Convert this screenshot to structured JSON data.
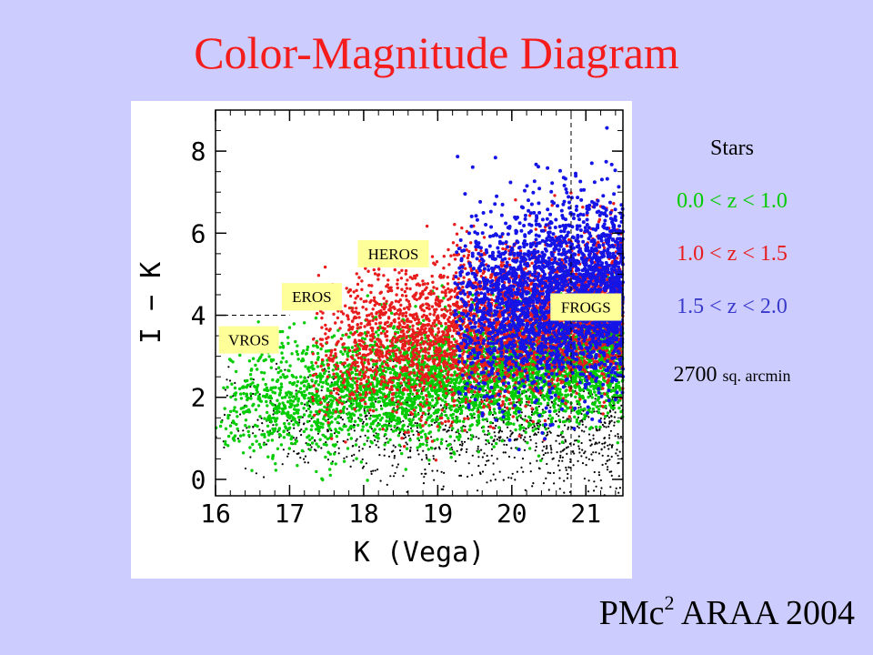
{
  "slide": {
    "title": "Color-Magnitude Diagram",
    "citation_prefix": "PMc",
    "citation_superscript": "2",
    "citation_suffix": "ARAA 2004"
  },
  "legend": {
    "title": "Stars",
    "entries": [
      {
        "label": "0.0 < z < 1.0",
        "color": "#00cc00"
      },
      {
        "label": "1.0 < z < 1.5",
        "color": "#e81c1c"
      },
      {
        "label": "1.5 < z < 2.0",
        "color": "#3a3acc"
      }
    ],
    "area_value": "2700",
    "area_unit": "sq. arcmin"
  },
  "chart_data": {
    "type": "scatter",
    "xlabel": "K (Vega)",
    "ylabel": "I − K",
    "xlim": [
      16,
      21.5
    ],
    "ylim": [
      -0.4,
      9
    ],
    "x_ticks": [
      16,
      17,
      18,
      19,
      20,
      21
    ],
    "y_ticks": [
      0,
      2,
      4,
      6,
      8
    ],
    "grid": false,
    "series": [
      {
        "color": "#000000",
        "n": 1100,
        "k_range": [
          16,
          21.5
        ],
        "ik_center": 1.3,
        "ik_spread": 0.75
      },
      {
        "color": "#00cc00",
        "n": 4200,
        "k_range": [
          16,
          21.5
        ],
        "ik_center": 2.3,
        "ik_spread": 0.7
      },
      {
        "color": "#e81c1c",
        "n": 3600,
        "k_range": [
          17.3,
          21.5
        ],
        "ik_center": 3.4,
        "ik_spread": 0.9
      },
      {
        "color": "#1414e6",
        "n": 2600,
        "k_range": [
          19.2,
          21.5
        ],
        "ik_center": 3.9,
        "ik_spread": 1.1
      }
    ],
    "regions": [
      {
        "label": "VROS",
        "k": 16.45,
        "ik": 3.4
      },
      {
        "label": "EROS",
        "k": 17.3,
        "ik": 4.45
      },
      {
        "label": "HEROS",
        "k": 18.4,
        "ik": 5.5
      },
      {
        "label": "FROGS",
        "k": 21.0,
        "ik": 4.2
      }
    ],
    "reference_lines": [
      {
        "orientation": "horizontal",
        "ik": 4,
        "k_range": [
          16,
          17.0
        ]
      },
      {
        "orientation": "vertical",
        "k": 20.8,
        "ik_range": [
          -0.4,
          9
        ]
      }
    ]
  }
}
